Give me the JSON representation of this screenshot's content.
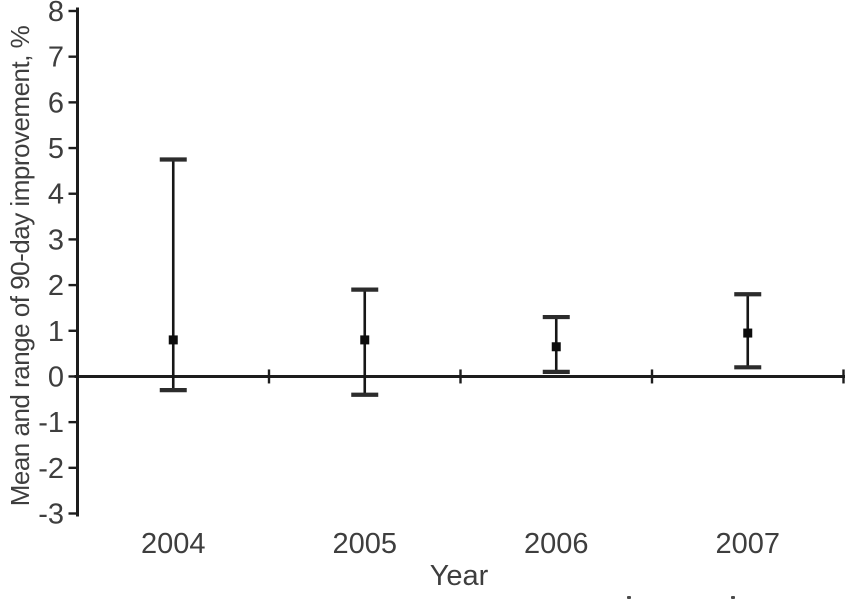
{
  "figure": {
    "background": "#ffffff"
  },
  "chart_data": {
    "type": "errorbar",
    "title": "",
    "xlabel": "Year",
    "ylabel": "Mean and range of 90-day improvement, %",
    "categories": [
      "2004",
      "2005",
      "2006",
      "2007"
    ],
    "series": [
      {
        "name": "mean",
        "marker": "filled-square",
        "values": [
          0.8,
          0.8,
          0.65,
          0.95
        ]
      },
      {
        "name": "range_min",
        "values": [
          -0.3,
          -0.4,
          0.1,
          0.2
        ]
      },
      {
        "name": "range_max",
        "values": [
          4.75,
          1.9,
          1.3,
          1.8
        ]
      }
    ],
    "ylim": [
      -3,
      8
    ],
    "yticks": [
      8,
      7,
      6,
      5,
      4,
      3,
      2,
      1,
      0,
      -1,
      -2,
      -3
    ],
    "grid": false,
    "legend": "none",
    "baseline_at": 0,
    "colors": {
      "line": "#1d1d1d",
      "text": "#3e3e3e",
      "marker": "#0d0d0d"
    }
  }
}
